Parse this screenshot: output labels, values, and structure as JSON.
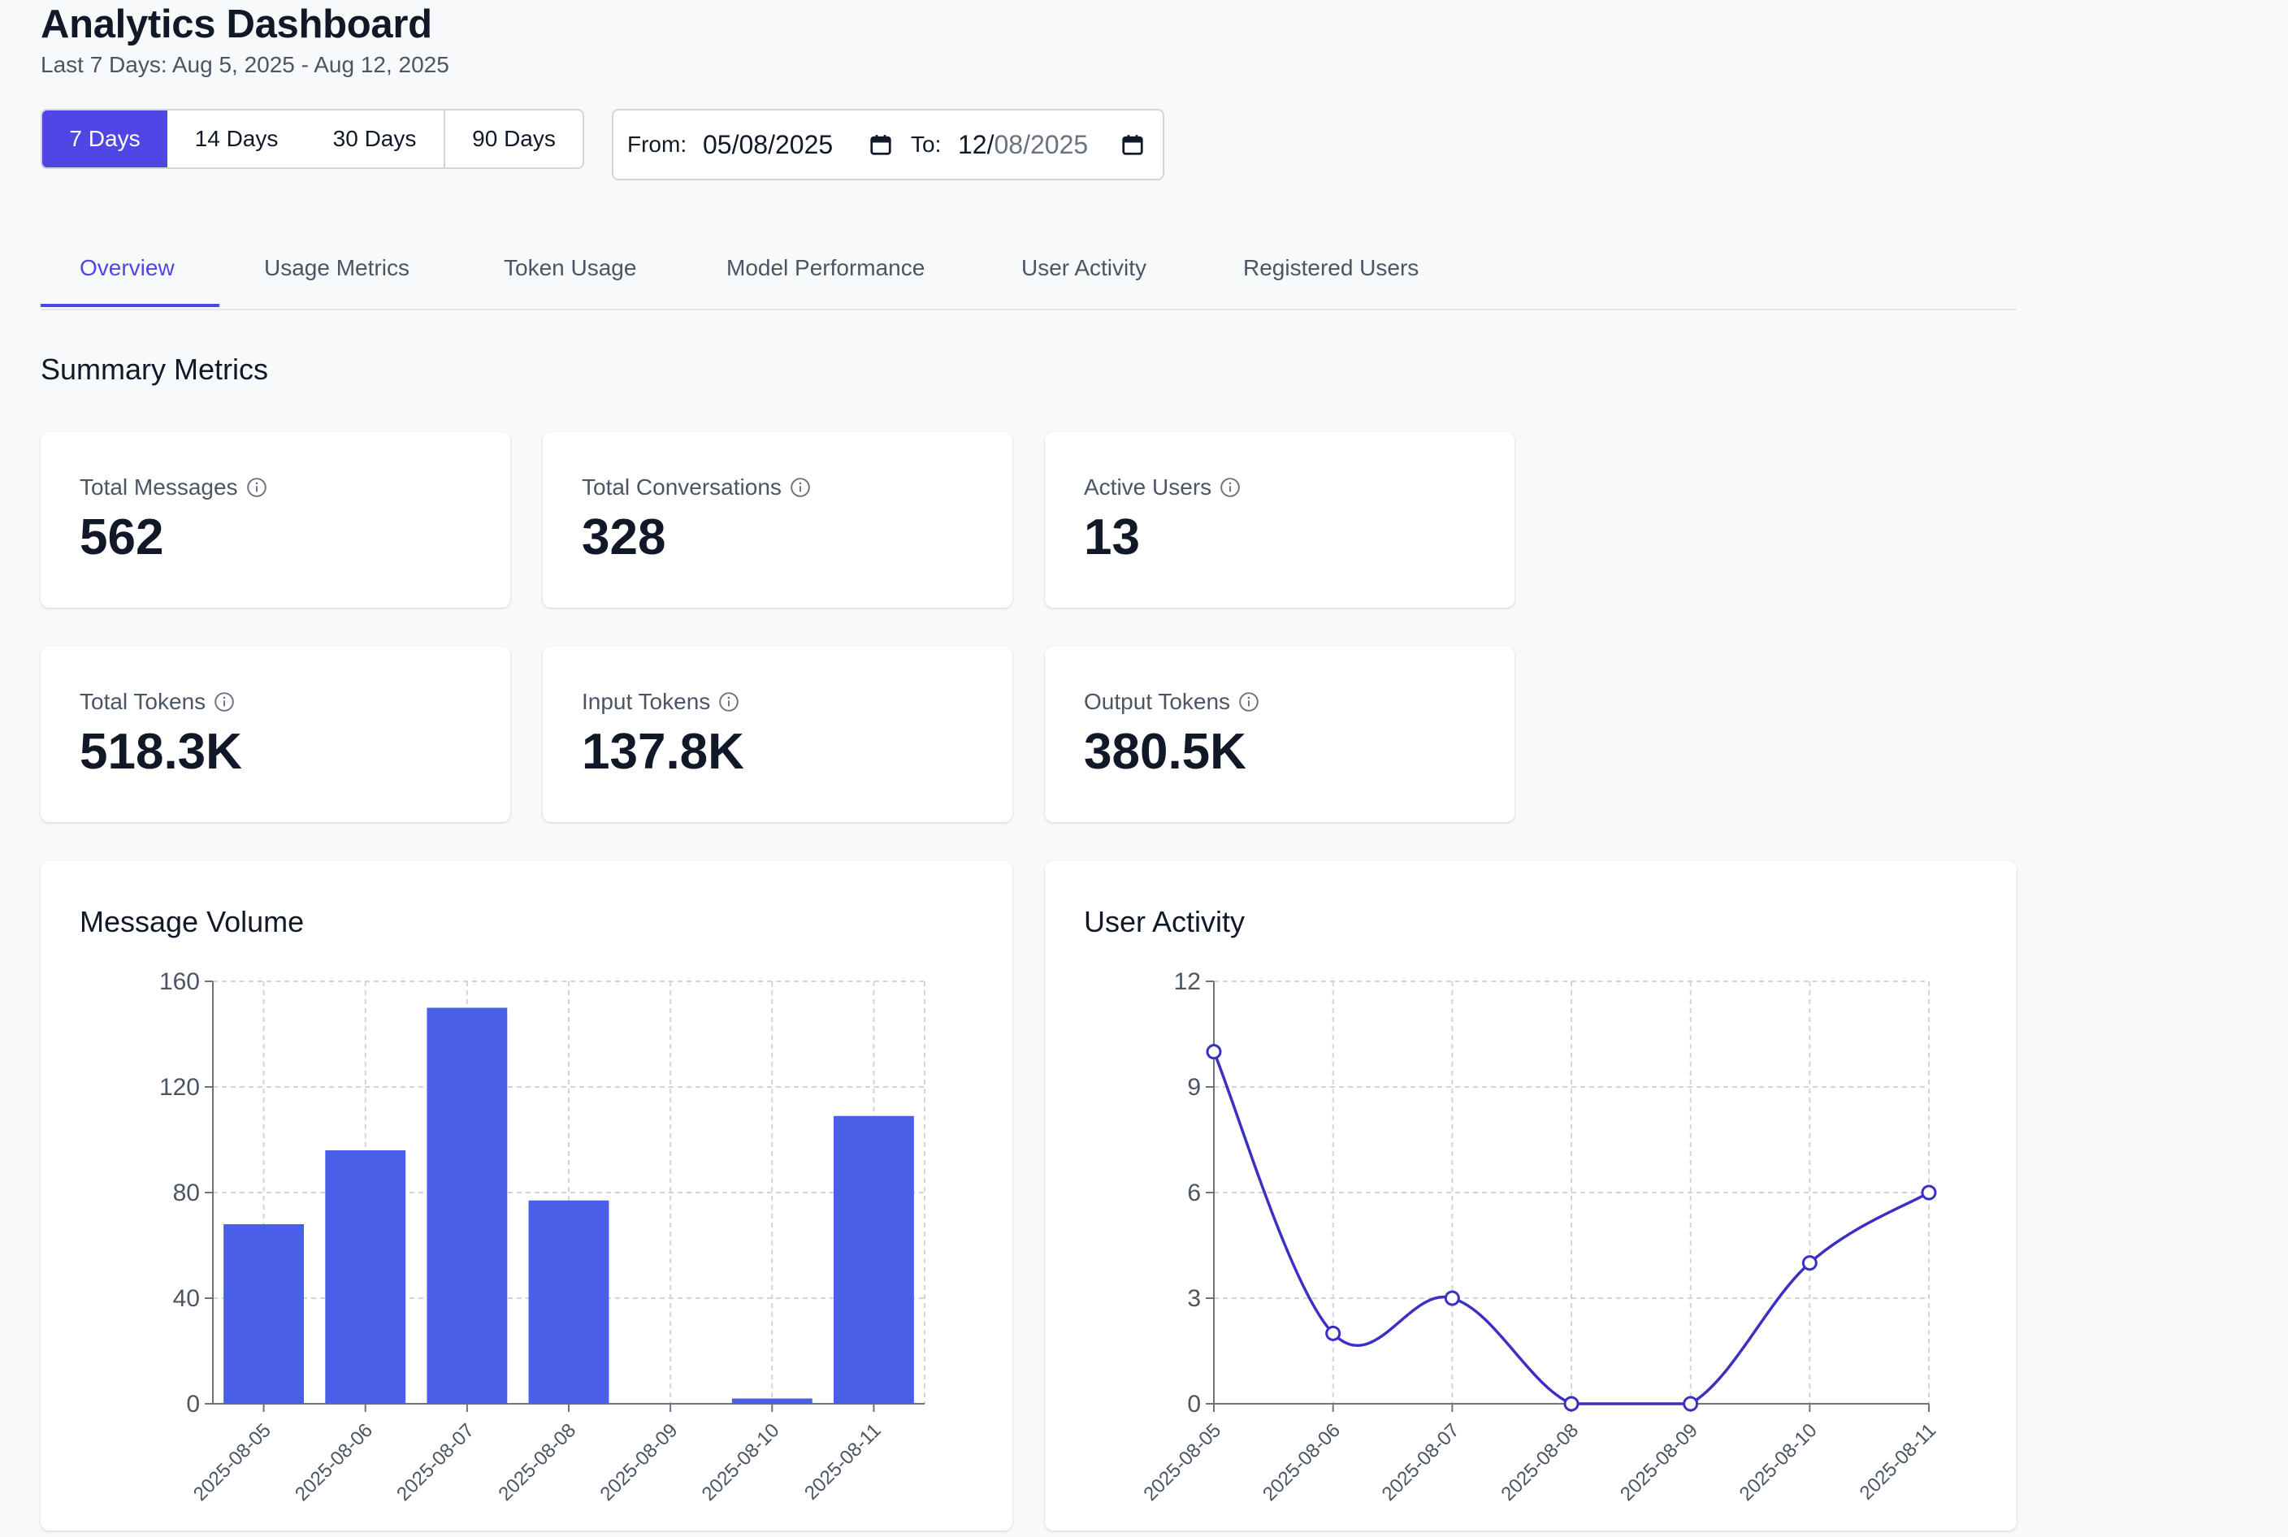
{
  "header": {
    "title": "Analytics Dashboard",
    "subtitle": "Last 7 Days: Aug 5, 2025 - Aug 12, 2025"
  },
  "range_buttons": [
    {
      "label": "7 Days",
      "active": true
    },
    {
      "label": "14 Days",
      "active": false
    },
    {
      "label": "30 Days",
      "active": false
    },
    {
      "label": "90 Days",
      "active": false
    }
  ],
  "date_range": {
    "from_label": "From:",
    "from_value": "05/08/2025",
    "to_label": "To:",
    "to_value_day": "12/",
    "to_value_month": "08/",
    "to_value_year": "2025"
  },
  "tabs": [
    {
      "label": "Overview",
      "active": true
    },
    {
      "label": "Usage Metrics",
      "active": false
    },
    {
      "label": "Token Usage",
      "active": false
    },
    {
      "label": "Model Performance",
      "active": false
    },
    {
      "label": "User Activity",
      "active": false
    },
    {
      "label": "Registered Users",
      "active": false
    }
  ],
  "summary": {
    "title": "Summary Metrics",
    "metrics": [
      {
        "label": "Total Messages",
        "value": "562"
      },
      {
        "label": "Total Conversations",
        "value": "328"
      },
      {
        "label": "Active Users",
        "value": "13"
      },
      {
        "label": "Total Tokens",
        "value": "518.3K"
      },
      {
        "label": "Input Tokens",
        "value": "137.8K"
      },
      {
        "label": "Output Tokens",
        "value": "380.5K"
      }
    ]
  },
  "colors": {
    "accent": "#4f46e5",
    "bar": "#4a5fe8",
    "line": "#3b2fc4"
  },
  "chart_data": [
    {
      "type": "bar",
      "title": "Message Volume",
      "categories": [
        "2025-08-05",
        "2025-08-06",
        "2025-08-07",
        "2025-08-08",
        "2025-08-09",
        "2025-08-10",
        "2025-08-11"
      ],
      "values": [
        68,
        96,
        150,
        77,
        0,
        2,
        109
      ],
      "ylim": [
        0,
        160
      ],
      "yticks": [
        0,
        40,
        80,
        120,
        160
      ],
      "grid": true
    },
    {
      "type": "line",
      "title": "User Activity",
      "categories": [
        "2025-08-05",
        "2025-08-06",
        "2025-08-07",
        "2025-08-08",
        "2025-08-09",
        "2025-08-10",
        "2025-08-11"
      ],
      "values": [
        10,
        2,
        3,
        0,
        0,
        4,
        6
      ],
      "ylim": [
        0,
        12
      ],
      "yticks": [
        0,
        3,
        6,
        9,
        12
      ],
      "grid": true
    }
  ]
}
